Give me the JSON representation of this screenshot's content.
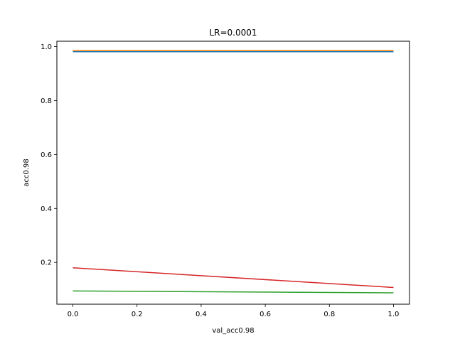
{
  "chart_data": {
    "type": "line",
    "title": "LR=0.0001",
    "xlabel": "val_acc0.98",
    "ylabel": "acc0.98",
    "xlim": [
      -0.05,
      1.05
    ],
    "ylim": [
      0.045,
      1.02
    ],
    "x_ticks": [
      0.0,
      0.2,
      0.4,
      0.6,
      0.8,
      1.0
    ],
    "y_ticks": [
      0.2,
      0.4,
      0.6,
      0.8,
      1.0
    ],
    "x_tick_labels": [
      "0.0",
      "0.2",
      "0.4",
      "0.6",
      "0.8",
      "1.0"
    ],
    "y_tick_labels": [
      "0.2",
      "0.4",
      "0.6",
      "0.8",
      "1.0"
    ],
    "grid": false,
    "legend": "none",
    "series": [
      {
        "color": "#1f77b4",
        "x": [
          0,
          1
        ],
        "y": [
          0.981,
          0.981
        ]
      },
      {
        "color": "#ff7f0e",
        "x": [
          0,
          1
        ],
        "y": [
          0.985,
          0.985
        ]
      },
      {
        "color": "#2ca02c",
        "x": [
          0,
          1
        ],
        "y": [
          0.094,
          0.087
        ]
      },
      {
        "color": "#d62728",
        "x": [
          0,
          1
        ],
        "y": [
          0.18,
          0.107
        ]
      }
    ]
  }
}
